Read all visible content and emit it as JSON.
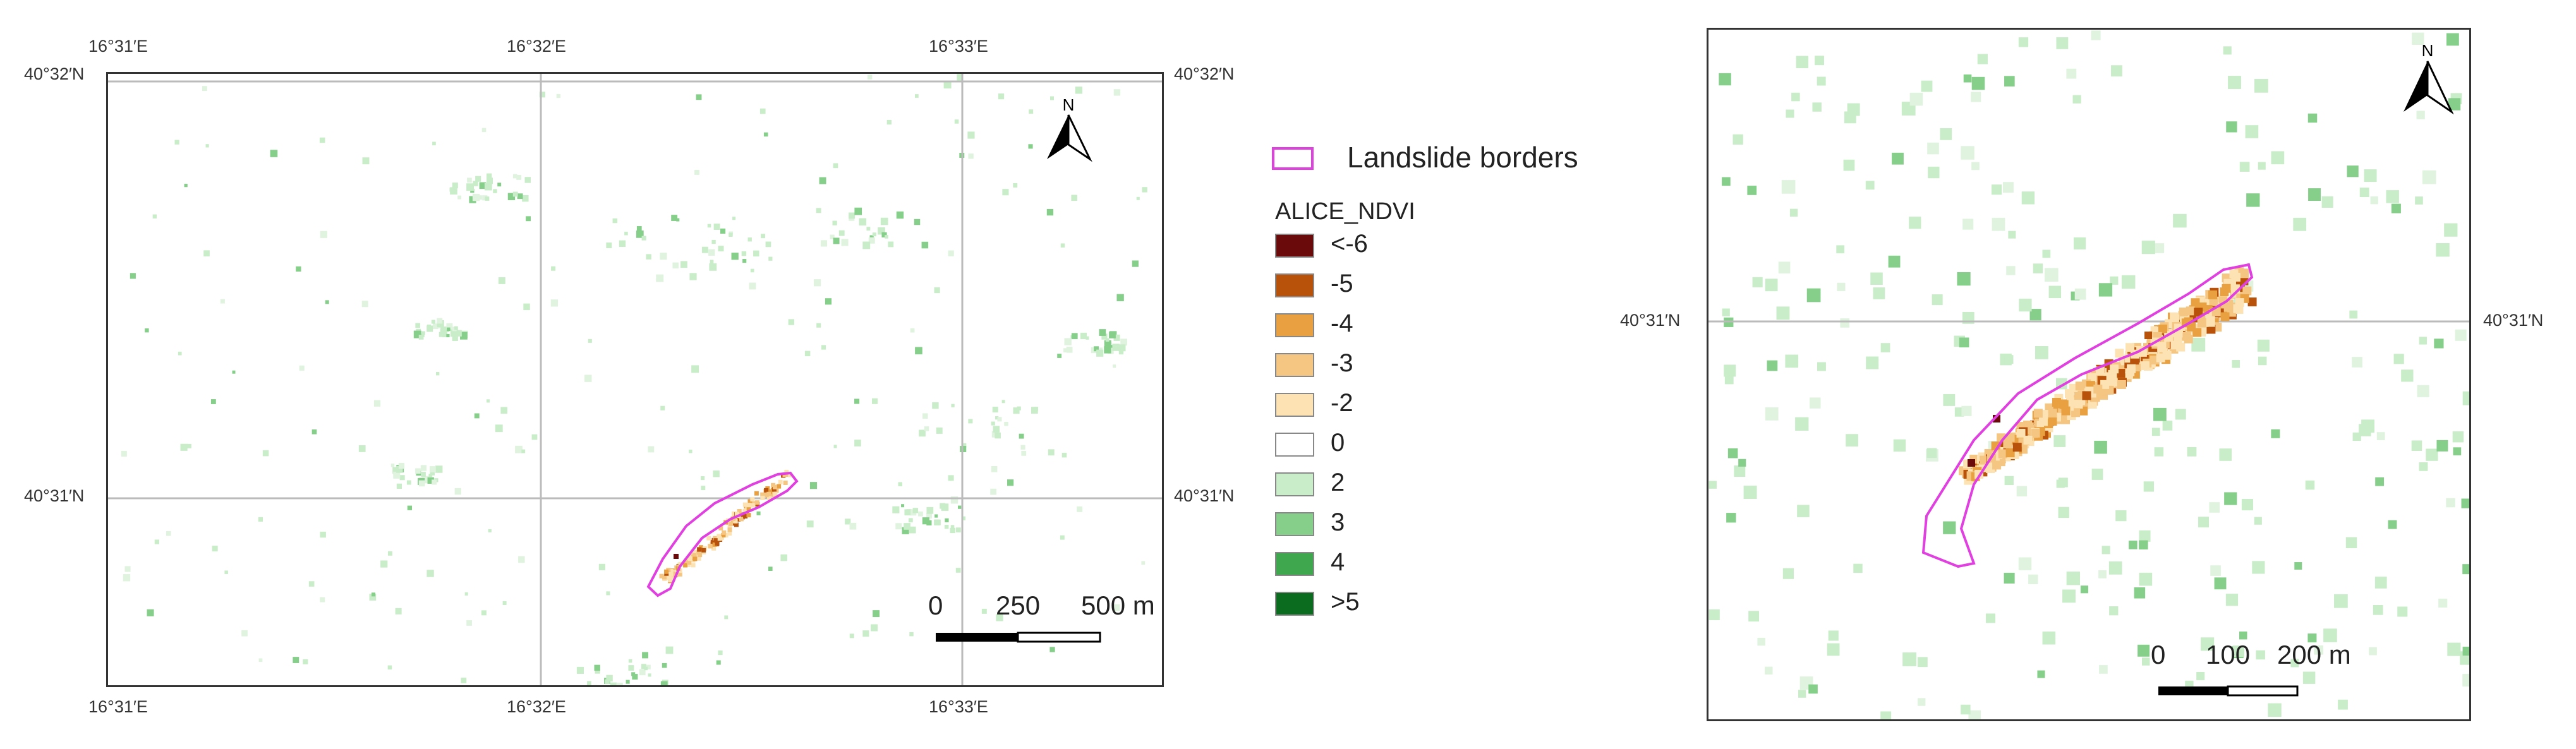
{
  "left_map": {
    "coords_top": [
      "16°31′E",
      "16°32′E",
      "16°33′E"
    ],
    "coords_bottom": [
      "16°31′E",
      "16°32′E",
      "16°33′E"
    ],
    "coords_lat": [
      "40°32′N",
      "40°31′N"
    ],
    "north_label": "N",
    "scale": {
      "labels": [
        "0",
        "250",
        "500 m"
      ]
    }
  },
  "right_map": {
    "coords_lat": [
      "40°31′N"
    ],
    "north_label": "N",
    "scale": {
      "labels": [
        "0",
        "100",
        "200 m"
      ]
    }
  },
  "legend": {
    "boundary_label": "Landslide borders",
    "boundary_color": "#e040e0",
    "title": "ALICE_NDVI",
    "items": [
      {
        "label": "<-6",
        "color": "#6b0a0a"
      },
      {
        "label": "-5",
        "color": "#b8520a"
      },
      {
        "label": "-4",
        "color": "#e8a040"
      },
      {
        "label": "-3",
        "color": "#f5c582"
      },
      {
        "label": "-2",
        "color": "#fde3b4"
      },
      {
        "label": "0",
        "color": "#ffffff"
      },
      {
        "label": "2",
        "color": "#c9ecc9"
      },
      {
        "label": "3",
        "color": "#86cf8a"
      },
      {
        "label": "4",
        "color": "#3fa84f"
      },
      {
        "label": ">5",
        "color": "#0b6b1e"
      }
    ]
  }
}
